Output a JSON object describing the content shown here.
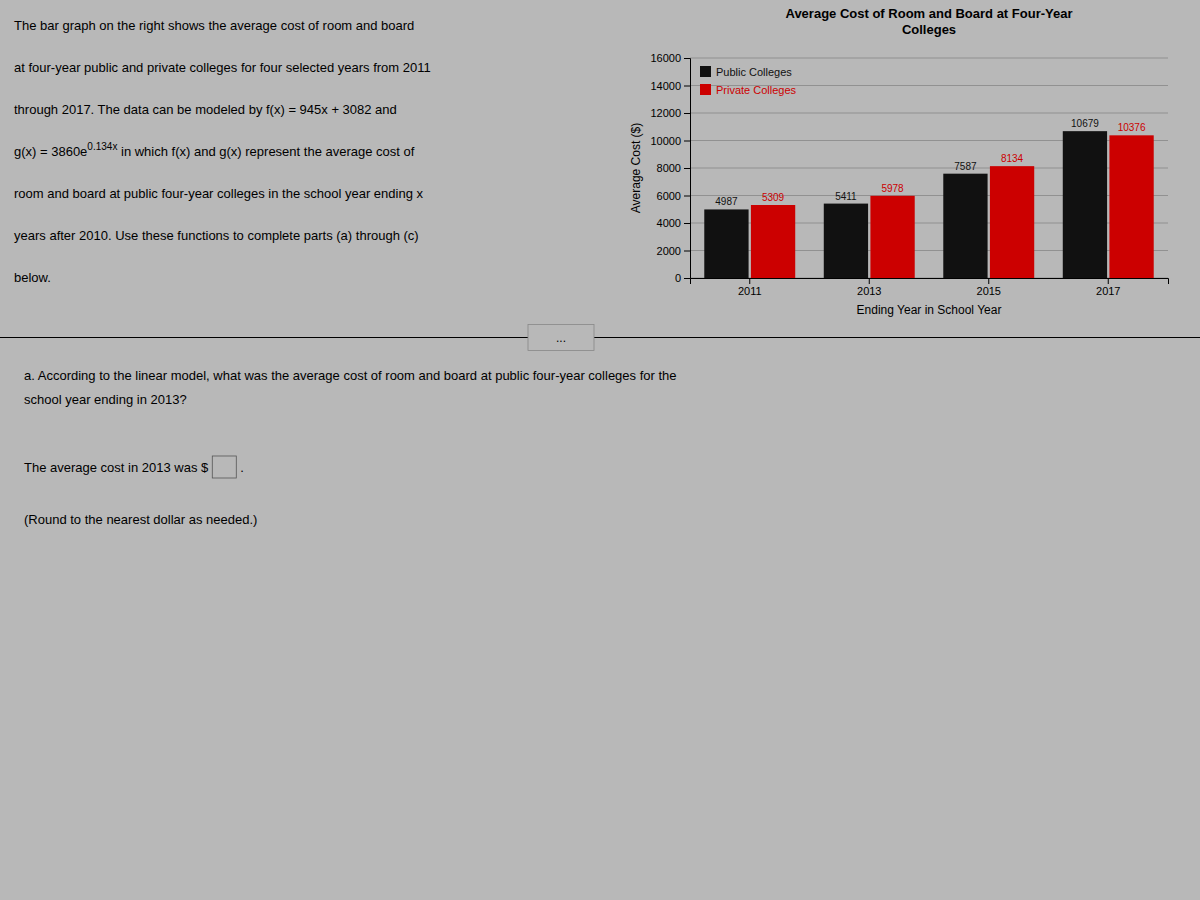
{
  "chart_data": {
    "type": "bar",
    "title": "Average Cost of Room and Board at Four-Year\nColleges",
    "xlabel": "Ending Year in School Year",
    "ylabel": "Average Cost ($)",
    "categories": [
      "2011",
      "2013",
      "2015",
      "2017"
    ],
    "series": [
      {
        "name": "Public Colleges",
        "color": "#111111",
        "values": [
          4987,
          5411,
          7587,
          10679
        ]
      },
      {
        "name": "Private Colleges",
        "color": "#cc0000",
        "values": [
          5309,
          5978,
          8134,
          10376
        ]
      }
    ],
    "ylim": [
      0,
      16000
    ],
    "yticks": [
      0,
      2000,
      4000,
      6000,
      8000,
      10000,
      12000,
      14000,
      16000
    ],
    "grid": true,
    "legend": "upper left",
    "data_labels": true
  },
  "background": "#b8b8b8",
  "paragraph": [
    "The bar graph on the right shows the average cost of room and board",
    "at four-year public and private colleges for four selected years from 2011",
    "through 2017. The data can be modeled by f(x) = 945x + 3082 and",
    {
      "base": "g(x) = 3860e",
      "superscript": "0.134x",
      "rest": " in which f(x) and g(x) represent the average cost of"
    },
    "room and board at public four-year colleges in the school year ending x",
    "years after 2010. Use these functions to complete parts (a) through (c)",
    "below."
  ],
  "question": [
    "a. According to the linear model, what was the average cost of room and board at public four-year colleges for the",
    "school year ending in 2013?"
  ],
  "answer_prefix": "The average cost in 2013 was $",
  "answer_suffix": ".",
  "answer_note": "(Round to the nearest dollar as needed.)",
  "button": "..."
}
